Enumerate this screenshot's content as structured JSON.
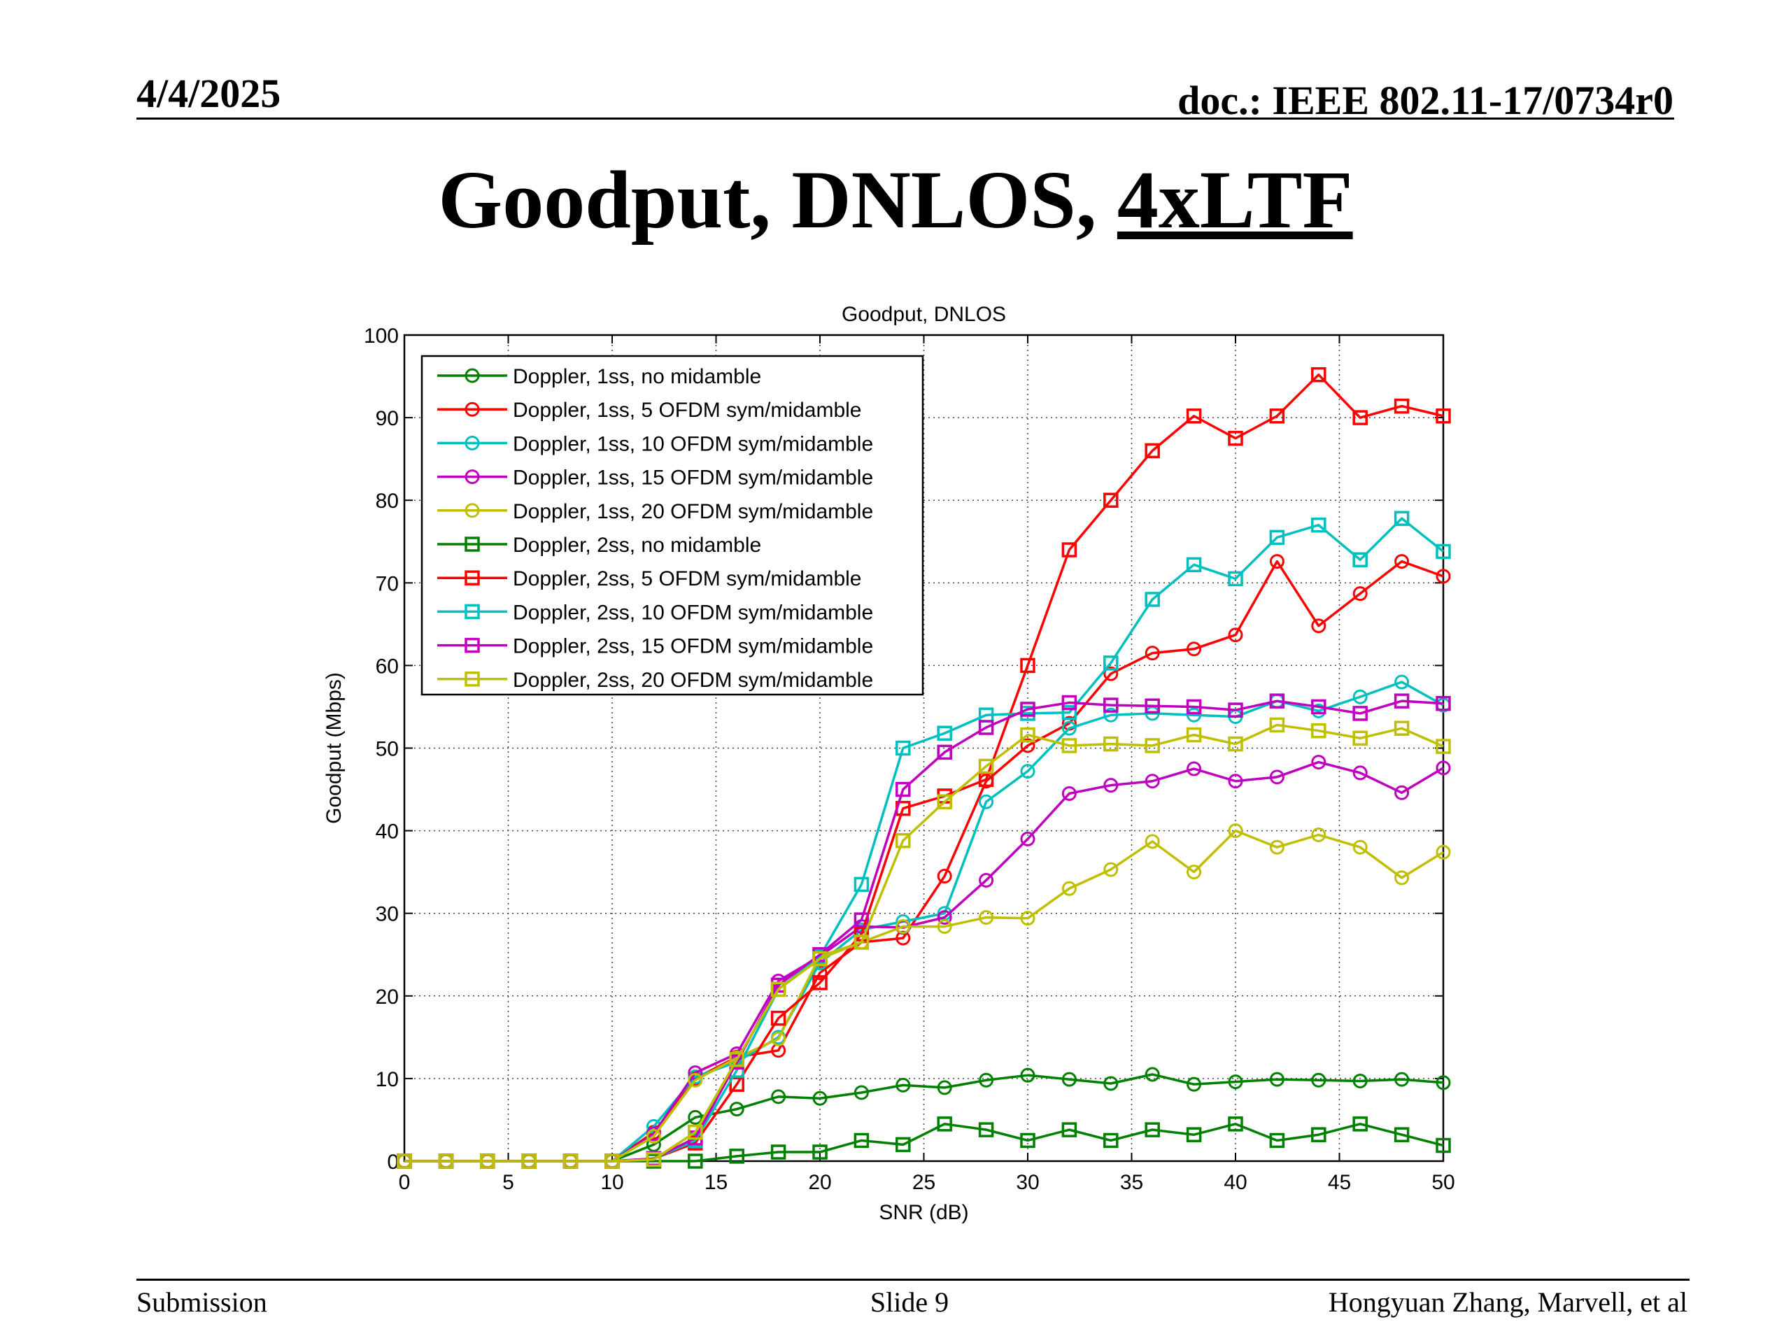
{
  "header": {
    "date": "4/4/2025",
    "doc": "doc.: IEEE 802.11-17/0734r0"
  },
  "slide": {
    "title_main": "Goodput, DNLOS, ",
    "title_underlined": "4xLTF"
  },
  "footer": {
    "left": "Submission",
    "center": "Slide 9",
    "right": "Hongyuan Zhang, Marvell, et al"
  },
  "chart_data": {
    "type": "line",
    "title": "Goodput, DNLOS",
    "xlabel": "SNR (dB)",
    "ylabel": "Goodput (Mbps)",
    "xlim": [
      0,
      50
    ],
    "ylim": [
      0,
      100
    ],
    "xticks": [
      0,
      5,
      10,
      15,
      20,
      25,
      30,
      35,
      40,
      45,
      50
    ],
    "yticks": [
      0,
      10,
      20,
      30,
      40,
      50,
      60,
      70,
      80,
      90,
      100
    ],
    "grid": true,
    "legend_position": "top-left",
    "x": [
      0,
      2,
      4,
      6,
      8,
      10,
      12,
      14,
      16,
      18,
      20,
      22,
      24,
      26,
      28,
      30,
      32,
      34,
      36,
      38,
      40,
      42,
      44,
      46,
      48,
      50
    ],
    "series": [
      {
        "name": "Doppler, 1ss, no midamble",
        "color": "#008000",
        "marker": "circle",
        "values": [
          0,
          0,
          0,
          0,
          0,
          0,
          2,
          5.3,
          6.3,
          7.8,
          7.6,
          8.3,
          9.2,
          8.9,
          9.8,
          10.4,
          9.9,
          9.4,
          10.5,
          9.3,
          9.6,
          9.9,
          9.8,
          9.7,
          9.9,
          9.5
        ]
      },
      {
        "name": "Doppler, 1ss, 5 OFDM sym/midamble",
        "color": "#ff0000",
        "marker": "circle",
        "values": [
          0,
          0,
          0,
          0,
          0,
          0,
          3.5,
          10,
          12.6,
          13.4,
          22.8,
          26.5,
          27,
          34.5,
          46,
          50.3,
          53,
          59,
          61.5,
          62,
          63.7,
          72.6,
          64.8,
          68.7,
          72.6,
          70.8
        ]
      },
      {
        "name": "Doppler, 1ss, 10 OFDM sym/midamble",
        "color": "#00bfbf",
        "marker": "circle",
        "values": [
          0,
          0,
          0,
          0,
          0,
          0,
          4.2,
          10.2,
          12,
          15,
          24,
          28,
          29,
          30,
          43.5,
          47.2,
          52.4,
          54,
          54.2,
          54,
          53.8,
          55.7,
          54.5,
          56.2,
          58,
          55.2
        ]
      },
      {
        "name": "Doppler, 1ss, 15 OFDM sym/midamble",
        "color": "#bf00bf",
        "marker": "circle",
        "values": [
          0,
          0,
          0,
          0,
          0,
          0,
          3.3,
          10.7,
          13,
          21.8,
          24.8,
          28.4,
          28.3,
          29.5,
          34,
          39,
          44.5,
          45.5,
          46,
          47.5,
          46,
          46.5,
          48.3,
          47,
          44.6,
          47.6
        ]
      },
      {
        "name": "Doppler, 1ss, 20 OFDM sym/midamble",
        "color": "#bfbf00",
        "marker": "circle",
        "values": [
          0,
          0,
          0,
          0,
          0,
          0,
          3,
          9.8,
          12.5,
          14.8,
          24.8,
          26.5,
          28.4,
          28.4,
          29.5,
          29.4,
          33,
          35.3,
          38.7,
          35,
          40,
          38,
          39.5,
          38,
          34.3,
          37.4
        ]
      },
      {
        "name": "Doppler, 2ss, no midamble",
        "color": "#008000",
        "marker": "square",
        "values": [
          0,
          0,
          0,
          0,
          0,
          0,
          0,
          0,
          0.6,
          1.1,
          1.1,
          2.5,
          2,
          4.5,
          3.8,
          2.5,
          3.8,
          2.5,
          3.8,
          3.2,
          4.5,
          2.5,
          3.2,
          4.5,
          3.2,
          1.9
        ]
      },
      {
        "name": "Doppler, 2ss, 5 OFDM sym/midamble",
        "color": "#ff0000",
        "marker": "square",
        "values": [
          0,
          0,
          0,
          0,
          0,
          0,
          0.3,
          2.2,
          9.3,
          17.3,
          21.6,
          27.5,
          42.7,
          44.2,
          46.2,
          60,
          74,
          80,
          86,
          90.2,
          87.5,
          90.2,
          95.2,
          90,
          91.4,
          90.2
        ]
      },
      {
        "name": "Doppler, 2ss, 10 OFDM sym/midamble",
        "color": "#00bfbf",
        "marker": "square",
        "values": [
          0,
          0,
          0,
          0,
          0,
          0,
          0.3,
          2.5,
          11,
          20.8,
          24.8,
          33.5,
          50,
          51.8,
          54,
          54.2,
          54.3,
          60.3,
          68,
          72.2,
          70.5,
          75.5,
          77,
          72.8,
          77.8,
          73.8
        ]
      },
      {
        "name": "Doppler, 2ss, 15 OFDM sym/midamble",
        "color": "#bf00bf",
        "marker": "square",
        "values": [
          0,
          0,
          0,
          0,
          0,
          0,
          0.3,
          2.8,
          12,
          21.3,
          25,
          29.2,
          45,
          49.5,
          52.5,
          54.7,
          55.5,
          55.2,
          55.1,
          55,
          54.6,
          55.7,
          55,
          54.2,
          55.7,
          55.4
        ]
      },
      {
        "name": "Doppler, 2ss, 20 OFDM sym/midamble",
        "color": "#bfbf00",
        "marker": "square",
        "values": [
          0,
          0,
          0,
          0,
          0,
          0,
          0.2,
          3.5,
          12.3,
          20.8,
          24.5,
          26.5,
          38.8,
          43.5,
          47.8,
          51.6,
          50.3,
          50.5,
          50.3,
          51.6,
          50.5,
          52.8,
          52.1,
          51.2,
          52.4,
          50.2
        ]
      }
    ]
  }
}
